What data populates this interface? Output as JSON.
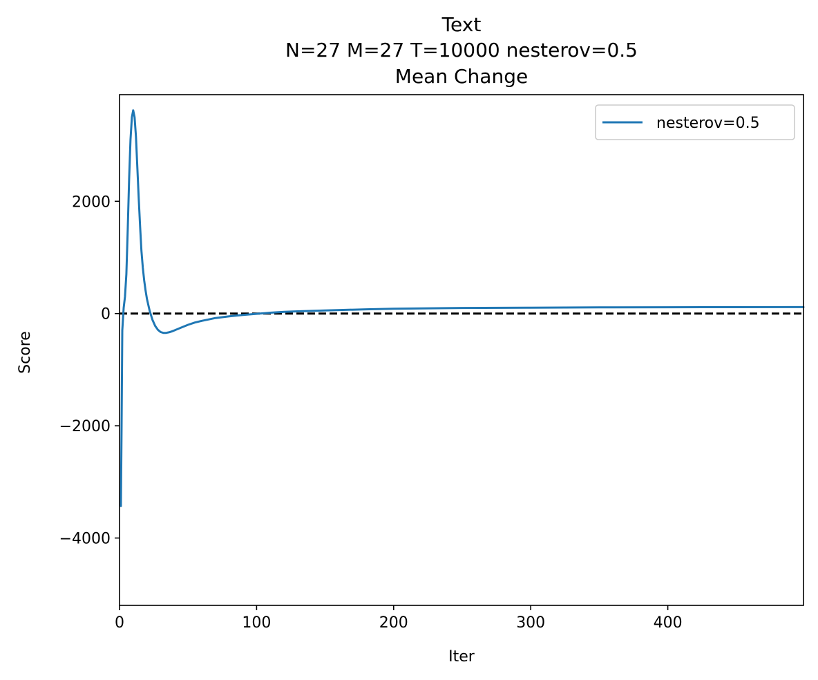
{
  "chart_data": {
    "type": "line",
    "title": [
      "Text",
      "N=27 M=27 T=10000 nesterov=0.5",
      "Mean Change"
    ],
    "xlabel": "Iter",
    "ylabel": "Score",
    "xlim": [
      0,
      499
    ],
    "ylim": [
      -5200,
      3900
    ],
    "xticks": [
      0,
      100,
      200,
      300,
      400
    ],
    "xtick_labels": [
      "0",
      "100",
      "200",
      "300",
      "400"
    ],
    "yticks": [
      -4000,
      -2000,
      0,
      2000
    ],
    "ytick_labels": [
      "−4000",
      "−2000",
      "0",
      "2000"
    ],
    "grid": false,
    "legend_position": "upper right",
    "reference_line": {
      "y": 0,
      "style": "dashed",
      "color": "#000000"
    },
    "series": [
      {
        "name": "nesterov=0.5",
        "color": "#1f77b4",
        "x": [
          1,
          1.5,
          2,
          3,
          4,
          5,
          6,
          7,
          8,
          9,
          10,
          11,
          12,
          13,
          14,
          15,
          16,
          17,
          18,
          19,
          20,
          22,
          24,
          26,
          28,
          30,
          32,
          34,
          36,
          38,
          40,
          45,
          50,
          55,
          60,
          70,
          80,
          90,
          100,
          110,
          120,
          130,
          150,
          180,
          200,
          250,
          300,
          350,
          400,
          450,
          499
        ],
        "y": [
          -3430,
          -2000,
          -300,
          100,
          300,
          700,
          1500,
          2400,
          3100,
          3500,
          3620,
          3500,
          3150,
          2600,
          2050,
          1550,
          1120,
          820,
          590,
          410,
          260,
          50,
          -110,
          -220,
          -290,
          -330,
          -345,
          -345,
          -335,
          -320,
          -300,
          -250,
          -200,
          -160,
          -130,
          -80,
          -50,
          -25,
          -5,
          15,
          30,
          40,
          55,
          75,
          85,
          100,
          105,
          110,
          112,
          114,
          115
        ]
      }
    ]
  }
}
